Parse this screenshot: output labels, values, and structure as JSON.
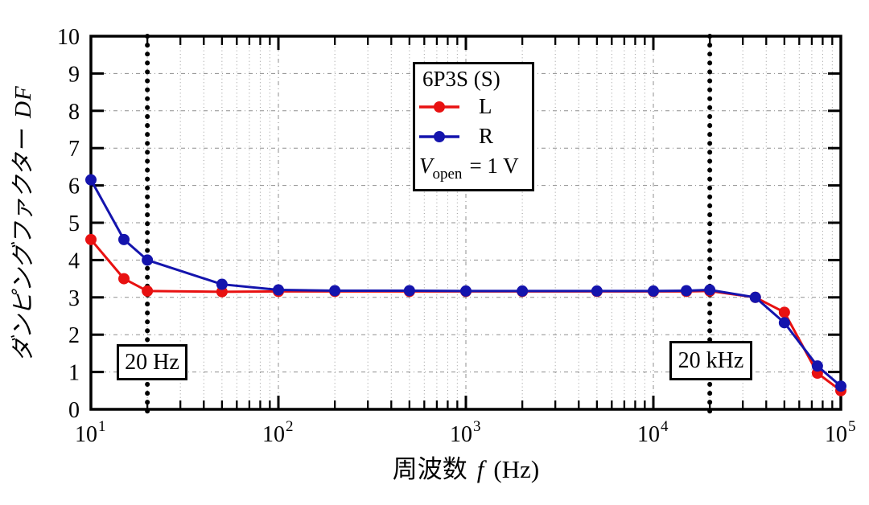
{
  "figure": {
    "background": "#ffffff"
  },
  "chart_data": {
    "type": "line",
    "title": "",
    "xlabel": "周波数 f (Hz)",
    "xlabel_prefix": "周波数",
    "xlabel_var": "f",
    "xlabel_suffix": "(Hz)",
    "ylabel": "ダンピングファクター DF",
    "ylabel_prefix": "ダンピングファクター",
    "ylabel_var": "DF",
    "x_scale": "log",
    "y_scale": "linear",
    "xlim": [
      10,
      100000
    ],
    "ylim": [
      0,
      10
    ],
    "y_ticks": [
      0,
      1,
      2,
      3,
      4,
      5,
      6,
      7,
      8,
      9,
      10
    ],
    "x_major_tick_exponents": [
      1,
      2,
      3,
      4,
      5
    ],
    "grid": "dotted",
    "legend_position": "top-center",
    "legend": {
      "title": "6P3S (S)",
      "note_var": "V",
      "note_sub": "open",
      "note_eq": "= 1 V"
    },
    "x": [
      10,
      15,
      20,
      50,
      100,
      200,
      500,
      1000,
      2000,
      5000,
      10000,
      15000,
      20000,
      35000,
      50000,
      75000,
      100000
    ],
    "series": [
      {
        "name": "L",
        "color": "#e81111",
        "values": [
          4.55,
          3.5,
          3.17,
          3.15,
          3.16,
          3.16,
          3.16,
          3.16,
          3.16,
          3.16,
          3.16,
          3.16,
          3.17,
          3.0,
          2.6,
          0.97,
          0.5
        ]
      },
      {
        "name": "R",
        "color": "#1414ad",
        "values": [
          6.15,
          4.55,
          4.0,
          3.35,
          3.2,
          3.18,
          3.18,
          3.17,
          3.17,
          3.17,
          3.17,
          3.18,
          3.2,
          3.0,
          2.32,
          1.16,
          0.62
        ]
      }
    ],
    "annotations": [
      {
        "text": "20 Hz",
        "x": 20
      },
      {
        "text": "20 kHz",
        "x": 20000
      }
    ],
    "annotation_line_color": "#000000",
    "grid_color": "#8f8f8f",
    "axis_color": "#000000"
  }
}
